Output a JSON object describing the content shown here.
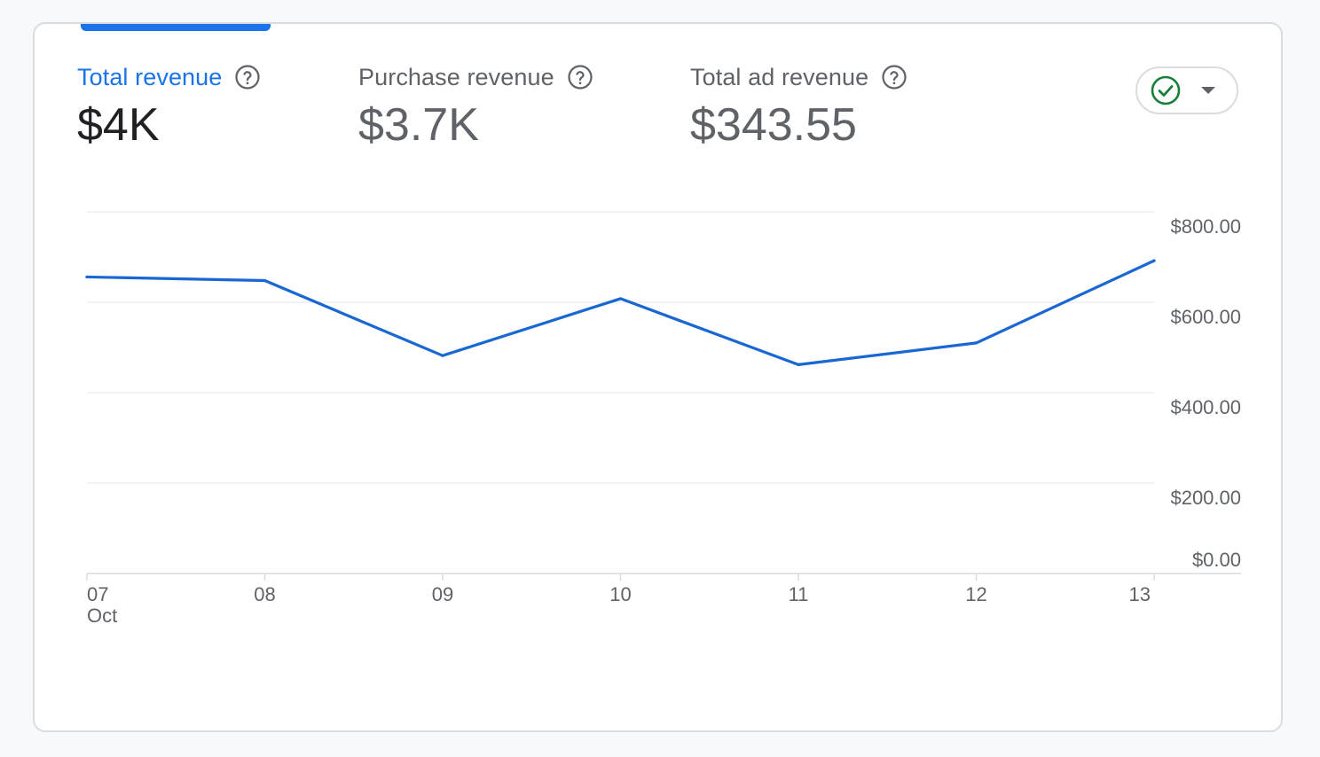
{
  "metrics": [
    {
      "label": "Total revenue",
      "value": "$4K",
      "active": true
    },
    {
      "label": "Purchase revenue",
      "value": "$3.7K",
      "active": false
    },
    {
      "label": "Total ad revenue",
      "value": "$343.55",
      "active": false
    }
  ],
  "icons": {
    "help": "help-circle-icon",
    "check": "check-circle-icon",
    "caret": "caret-down-icon"
  },
  "colors": {
    "accent": "#1a73e8",
    "line": "#1967d2",
    "check": "#188038"
  },
  "chart_data": {
    "type": "line",
    "x": [
      "07",
      "08",
      "09",
      "10",
      "11",
      "12",
      "13"
    ],
    "x_sub": "Oct",
    "series": [
      {
        "values": [
          656,
          648,
          482,
          608,
          462,
          510,
          692
        ]
      }
    ],
    "ylim": [
      0,
      800
    ],
    "yticks": [
      {
        "value": 800,
        "label": "$800.00"
      },
      {
        "value": 600,
        "label": "$600.00"
      },
      {
        "value": 400,
        "label": "$400.00"
      },
      {
        "value": 200,
        "label": "$200.00"
      },
      {
        "value": 0,
        "label": "$0.00"
      }
    ],
    "grid": true
  }
}
